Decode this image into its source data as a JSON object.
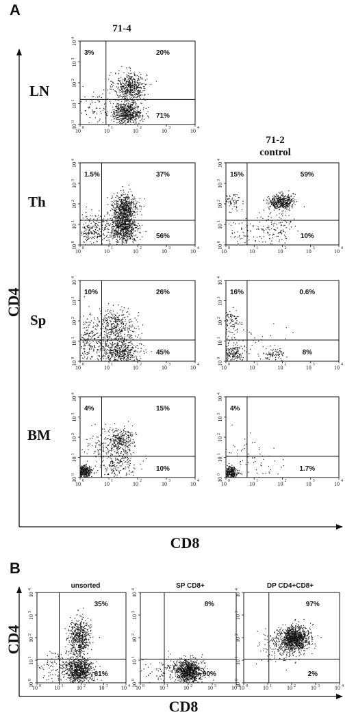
{
  "panel_labels": {
    "a": "A",
    "b": "B"
  },
  "axes_a": {
    "x_label": "CD8",
    "y_label": "CD4"
  },
  "axes_b": {
    "x_label": "CD8",
    "y_label": "CD4"
  },
  "columns_a": {
    "left": "71-4",
    "right_line1": "71-2",
    "right_line2": "control"
  },
  "rows_a": [
    "LN",
    "Th",
    "Sp",
    "BM"
  ],
  "chart_data": [
    {
      "type": "scatter",
      "panel": "A",
      "row": "LN",
      "column": "71-4",
      "xscale": "log",
      "yscale": "log",
      "xlim": [
        1,
        10000
      ],
      "ylim": [
        1,
        10000
      ],
      "tick_labels": [
        "10",
        "10",
        "10",
        "10",
        "10"
      ],
      "tick_exponents": [
        "0",
        "1",
        "2",
        "3",
        "4"
      ],
      "quadrants": {
        "upper_left": "3%",
        "upper_right": "20%",
        "lower_right": "71%"
      },
      "clusters": [
        {
          "cx": 1.75,
          "cy": 1.8,
          "sx": 0.28,
          "sy": 0.35,
          "n": 500
        },
        {
          "cx": 1.65,
          "cy": 0.55,
          "sx": 0.25,
          "sy": 0.25,
          "n": 600
        },
        {
          "cx": 0.6,
          "cy": 0.8,
          "sx": 0.35,
          "sy": 0.5,
          "n": 80
        }
      ]
    },
    {
      "type": "scatter",
      "panel": "A",
      "row": "Th",
      "column": "71-4",
      "xscale": "log",
      "yscale": "log",
      "xlim": [
        1,
        10000
      ],
      "ylim": [
        1,
        10000
      ],
      "tick_labels": [
        "10",
        "10",
        "10",
        "10",
        "10"
      ],
      "tick_exponents": [
        "0",
        "1",
        "2",
        "3",
        "4"
      ],
      "quadrants": {
        "upper_left": "1.5%",
        "upper_right": "37%",
        "lower_right": "56%"
      },
      "clusters": [
        {
          "cx": 1.55,
          "cy": 1.75,
          "sx": 0.22,
          "sy": 0.35,
          "n": 600
        },
        {
          "cx": 1.5,
          "cy": 0.8,
          "sx": 0.25,
          "sy": 0.35,
          "n": 700
        },
        {
          "cx": 0.4,
          "cy": 0.75,
          "sx": 0.3,
          "sy": 0.45,
          "n": 250
        }
      ]
    },
    {
      "type": "scatter",
      "panel": "A",
      "row": "Th",
      "column": "71-2 control",
      "xscale": "log",
      "yscale": "log",
      "xlim": [
        1,
        10000
      ],
      "ylim": [
        1,
        10000
      ],
      "tick_labels": [
        "10",
        "10",
        "10",
        "10",
        "10"
      ],
      "tick_exponents": [
        "0",
        "1",
        "2",
        "3",
        "4"
      ],
      "quadrants": {
        "upper_left": "15%",
        "upper_right": "59%",
        "lower_right": "10%"
      },
      "clusters": [
        {
          "cx": 1.95,
          "cy": 2.1,
          "sx": 0.22,
          "sy": 0.18,
          "n": 450
        },
        {
          "cx": 0.25,
          "cy": 2.15,
          "sx": 0.15,
          "sy": 0.2,
          "n": 60
        },
        {
          "cx": 1.8,
          "cy": 0.8,
          "sx": 0.35,
          "sy": 0.4,
          "n": 120
        },
        {
          "cx": 0.7,
          "cy": 0.6,
          "sx": 0.4,
          "sy": 0.4,
          "n": 70
        }
      ]
    },
    {
      "type": "scatter",
      "panel": "A",
      "row": "Sp",
      "column": "71-4",
      "xscale": "log",
      "yscale": "log",
      "xlim": [
        1,
        10000
      ],
      "ylim": [
        1,
        10000
      ],
      "tick_labels": [
        "10",
        "10",
        "10",
        "10",
        "10"
      ],
      "tick_exponents": [
        "0",
        "1",
        "2",
        "3",
        "4"
      ],
      "quadrants": {
        "upper_left": "10%",
        "upper_right": "26%",
        "lower_right": "45%"
      },
      "clusters": [
        {
          "cx": 1.25,
          "cy": 1.75,
          "sx": 0.35,
          "sy": 0.4,
          "n": 400
        },
        {
          "cx": 1.4,
          "cy": 0.45,
          "sx": 0.35,
          "sy": 0.3,
          "n": 500
        },
        {
          "cx": 0.35,
          "cy": 1.0,
          "sx": 0.3,
          "sy": 0.7,
          "n": 250
        }
      ]
    },
    {
      "type": "scatter",
      "panel": "A",
      "row": "Sp",
      "column": "71-2 control",
      "xscale": "log",
      "yscale": "log",
      "xlim": [
        1,
        10000
      ],
      "ylim": [
        1,
        10000
      ],
      "tick_labels": [
        "10",
        "10",
        "10",
        "10",
        "10"
      ],
      "tick_exponents": [
        "0",
        "1",
        "2",
        "3",
        "4"
      ],
      "quadrants": {
        "upper_left": "16%",
        "upper_right": "0.6%",
        "lower_right": "8%"
      },
      "clusters": [
        {
          "cx": 0.2,
          "cy": 1.8,
          "sx": 0.15,
          "sy": 0.35,
          "n": 90
        },
        {
          "cx": 0.25,
          "cy": 0.35,
          "sx": 0.2,
          "sy": 0.25,
          "n": 200
        },
        {
          "cx": 1.7,
          "cy": 0.35,
          "sx": 0.2,
          "sy": 0.15,
          "n": 80
        },
        {
          "cx": 1.0,
          "cy": 0.9,
          "sx": 0.6,
          "sy": 0.5,
          "n": 40
        }
      ]
    },
    {
      "type": "scatter",
      "panel": "A",
      "row": "BM",
      "column": "71-4",
      "xscale": "log",
      "yscale": "log",
      "xlim": [
        1,
        10000
      ],
      "ylim": [
        1,
        10000
      ],
      "tick_labels": [
        "10",
        "10",
        "10",
        "10",
        "10"
      ],
      "tick_exponents": [
        "0",
        "1",
        "2",
        "3",
        "4"
      ],
      "quadrants": {
        "upper_left": "4%",
        "upper_right": "15%",
        "lower_right": "10%"
      },
      "clusters": [
        {
          "cx": 0.15,
          "cy": 0.3,
          "sx": 0.12,
          "sy": 0.15,
          "n": 350
        },
        {
          "cx": 1.4,
          "cy": 1.85,
          "sx": 0.22,
          "sy": 0.3,
          "n": 250
        },
        {
          "cx": 1.3,
          "cy": 0.8,
          "sx": 0.35,
          "sy": 0.5,
          "n": 250
        },
        {
          "cx": 0.6,
          "cy": 1.4,
          "sx": 0.3,
          "sy": 0.6,
          "n": 80
        }
      ]
    },
    {
      "type": "scatter",
      "panel": "A",
      "row": "BM",
      "column": "71-2 control",
      "xscale": "log",
      "yscale": "log",
      "xlim": [
        1,
        10000
      ],
      "ylim": [
        1,
        10000
      ],
      "tick_labels": [
        "10",
        "10",
        "10",
        "10",
        "10"
      ],
      "tick_exponents": [
        "0",
        "1",
        "2",
        "3",
        "4"
      ],
      "quadrants": {
        "upper_left": "4%",
        "upper_right": "",
        "lower_right": "1.7%"
      },
      "clusters": [
        {
          "cx": 0.18,
          "cy": 0.25,
          "sx": 0.12,
          "sy": 0.15,
          "n": 260
        },
        {
          "cx": 0.6,
          "cy": 1.2,
          "sx": 0.4,
          "sy": 0.6,
          "n": 40
        },
        {
          "cx": 1.5,
          "cy": 0.5,
          "sx": 0.3,
          "sy": 0.4,
          "n": 25
        }
      ]
    },
    {
      "type": "scatter",
      "panel": "B",
      "column": "unsorted",
      "xscale": "log",
      "yscale": "log",
      "xlim": [
        1,
        10000
      ],
      "ylim": [
        1,
        10000
      ],
      "tick_labels": [
        "10",
        "10",
        "10",
        "10",
        "10"
      ],
      "tick_exponents": [
        "0",
        "1",
        "2",
        "3",
        "4"
      ],
      "quadrants": {
        "upper_left": "",
        "upper_right": "35%",
        "lower_right": "61%"
      },
      "clusters": [
        {
          "cx": 1.9,
          "cy": 2.0,
          "sx": 0.25,
          "sy": 0.4,
          "n": 550
        },
        {
          "cx": 1.9,
          "cy": 0.55,
          "sx": 0.3,
          "sy": 0.25,
          "n": 750
        },
        {
          "cx": 1.0,
          "cy": 0.6,
          "sx": 0.6,
          "sy": 0.4,
          "n": 150
        }
      ]
    },
    {
      "type": "scatter",
      "panel": "B",
      "column": "SP CD8+",
      "xscale": "log",
      "yscale": "log",
      "xlim": [
        1,
        10000
      ],
      "ylim": [
        1,
        10000
      ],
      "tick_labels": [
        "10",
        "10",
        "10",
        "10",
        "10"
      ],
      "tick_exponents": [
        "0",
        "1",
        "2",
        "3",
        "4"
      ],
      "quadrants": {
        "upper_left": "",
        "upper_right": "8%",
        "lower_right": "90%"
      },
      "clusters": [
        {
          "cx": 2.0,
          "cy": 0.5,
          "sx": 0.28,
          "sy": 0.25,
          "n": 900
        },
        {
          "cx": 1.2,
          "cy": 0.5,
          "sx": 0.6,
          "sy": 0.35,
          "n": 120
        }
      ]
    },
    {
      "type": "scatter",
      "panel": "B",
      "column": "DP CD4+CD8+",
      "xscale": "log",
      "yscale": "log",
      "xlim": [
        1,
        10000
      ],
      "ylim": [
        1,
        10000
      ],
      "tick_labels": [
        "10",
        "10",
        "10",
        "10",
        "10"
      ],
      "tick_exponents": [
        "0",
        "1",
        "2",
        "3",
        "4"
      ],
      "quadrants": {
        "upper_left": "",
        "upper_right": "97%",
        "lower_right": "2%"
      },
      "clusters": [
        {
          "cx": 2.1,
          "cy": 1.95,
          "sx": 0.3,
          "sy": 0.28,
          "n": 1100
        },
        {
          "cx": 1.5,
          "cy": 1.6,
          "sx": 0.4,
          "sy": 0.4,
          "n": 150
        }
      ]
    }
  ]
}
